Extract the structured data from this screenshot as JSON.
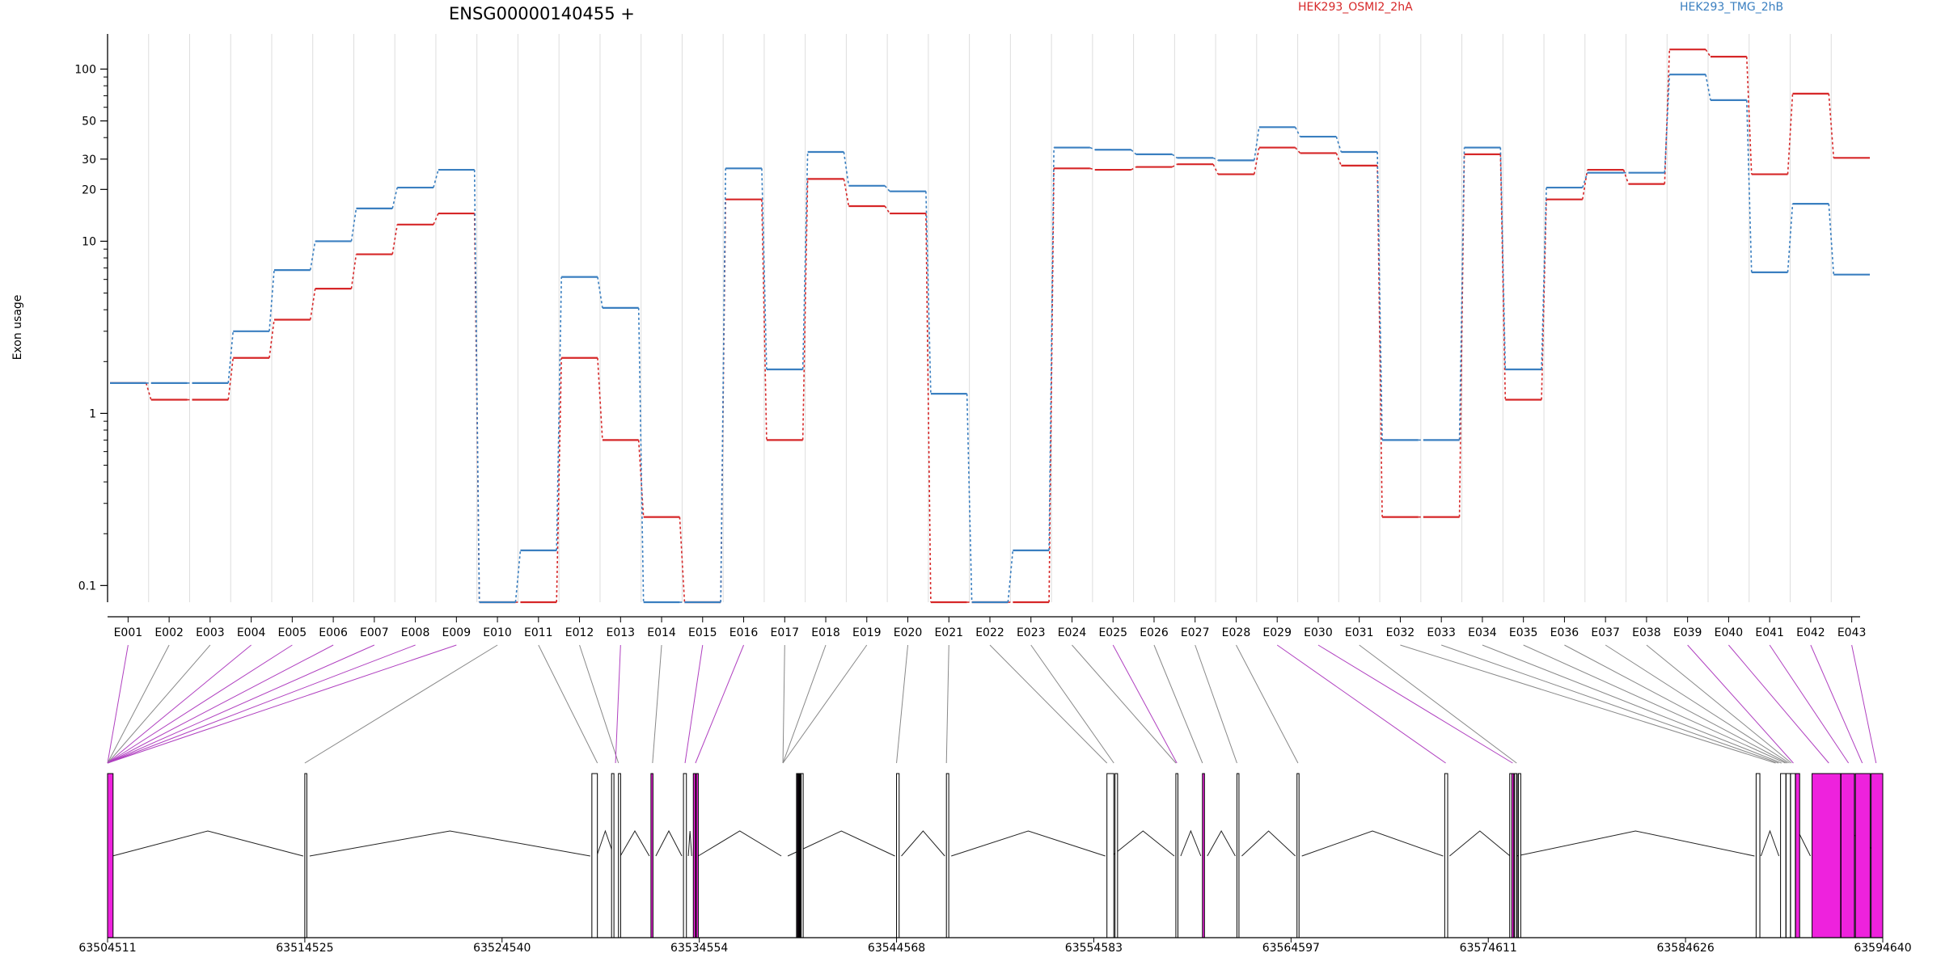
{
  "chart_data": {
    "type": "line",
    "title": "ENSG00000140455 +",
    "ylabel": "Exon usage",
    "xlabel": "",
    "y_scale": "log",
    "ylim": [
      0.08,
      160
    ],
    "y_ticks": [
      0.1,
      1,
      10,
      20,
      30,
      50,
      100
    ],
    "y_tick_labels": [
      "0.1",
      "1",
      "10",
      "20",
      "30",
      "50",
      "100"
    ],
    "grid": "vertical",
    "legend_placement": "top",
    "categories": [
      "E001",
      "E002",
      "E003",
      "E004",
      "E005",
      "E006",
      "E007",
      "E008",
      "E009",
      "E010",
      "E011",
      "E012",
      "E013",
      "E014",
      "E015",
      "E016",
      "E017",
      "E018",
      "E019",
      "E020",
      "E021",
      "E022",
      "E023",
      "E024",
      "E025",
      "E026",
      "E027",
      "E028",
      "E029",
      "E030",
      "E031",
      "E032",
      "E033",
      "E034",
      "E035",
      "E036",
      "E037",
      "E038",
      "E039",
      "E040",
      "E041",
      "E042",
      "E043"
    ],
    "series": [
      {
        "name": "HEK293_OSMI2_2hA",
        "color": "#d62728",
        "values": [
          1.5,
          1.2,
          1.2,
          2.1,
          3.5,
          5.3,
          8.4,
          12.5,
          14.5,
          0.08,
          0.08,
          2.1,
          0.7,
          0.25,
          0.08,
          17.5,
          0.7,
          23.0,
          16.0,
          14.5,
          0.08,
          0.08,
          0.08,
          26.5,
          26.0,
          27.0,
          28.0,
          24.5,
          35.0,
          32.5,
          27.5,
          0.25,
          0.25,
          32.0,
          1.2,
          17.5,
          26.0,
          21.5,
          130.0,
          118.0,
          24.5,
          72.0,
          30.5
        ]
      },
      {
        "name": "HEK293_TMG_2hB",
        "color": "#3a7fc0",
        "values": [
          1.5,
          1.5,
          1.5,
          3.0,
          6.8,
          10.0,
          15.5,
          20.5,
          26.0,
          0.08,
          0.16,
          6.2,
          4.1,
          0.08,
          0.08,
          26.5,
          1.8,
          33.0,
          21.0,
          19.5,
          1.3,
          0.08,
          0.16,
          35.0,
          34.0,
          32.0,
          30.5,
          29.5,
          46.0,
          40.5,
          33.0,
          0.7,
          0.7,
          35.0,
          1.8,
          20.5,
          25.0,
          25.0,
          93.0,
          66.0,
          6.6,
          16.5,
          6.4
        ]
      }
    ],
    "genomic_axis_labels": [
      "63504511",
      "63514525",
      "63524540",
      "63534554",
      "63544568",
      "63554583",
      "63564597",
      "63574611",
      "63584626",
      "63594640"
    ]
  },
  "colors": {
    "highlight_exon": "#ee22dd",
    "connector_highlight": "#b040c0",
    "connector_normal": "#888888",
    "exon_outline": "#000000",
    "intron_line": "#222222"
  },
  "gene_model": {
    "highlighted_exons": [
      "E001",
      "E004",
      "E005",
      "E006",
      "E007",
      "E008",
      "E009",
      "E013",
      "E015",
      "E016",
      "E025",
      "E029",
      "E030",
      "E039",
      "E040",
      "E041",
      "E042",
      "E043"
    ]
  }
}
